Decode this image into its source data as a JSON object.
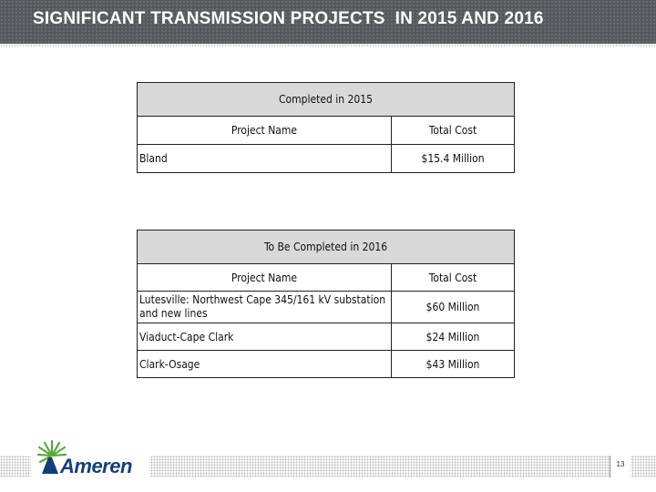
{
  "header": {
    "title": "SIGNIFICANT TRANSMISSION PROJECTS  IN 2015 AND 2016"
  },
  "table_2015": {
    "caption": "Completed in 2015",
    "col_name": "Project Name",
    "col_cost": "Total Cost",
    "rows": [
      {
        "name": "Bland",
        "cost": "$15.4  Million"
      }
    ]
  },
  "table_2016": {
    "caption": "To Be Completed in 2016",
    "col_name": "Project Name",
    "col_cost": "Total Cost",
    "rows": [
      {
        "name": "Lutesville:  Northwest Cape 345/161 kV substation and new lines",
        "cost": "$60 Million"
      },
      {
        "name": "Viaduct-Cape Clark",
        "cost": "$24 Million"
      },
      {
        "name": "Clark-Osage",
        "cost": "$43 Million"
      }
    ]
  },
  "footer": {
    "logo_text": "Ameren",
    "page_number": "13"
  },
  "colors": {
    "title_bar": "#555a5e",
    "table_header_fill": "#d9d9d9",
    "logo_blue": "#123f7a",
    "logo_green": "#5aa83c"
  }
}
